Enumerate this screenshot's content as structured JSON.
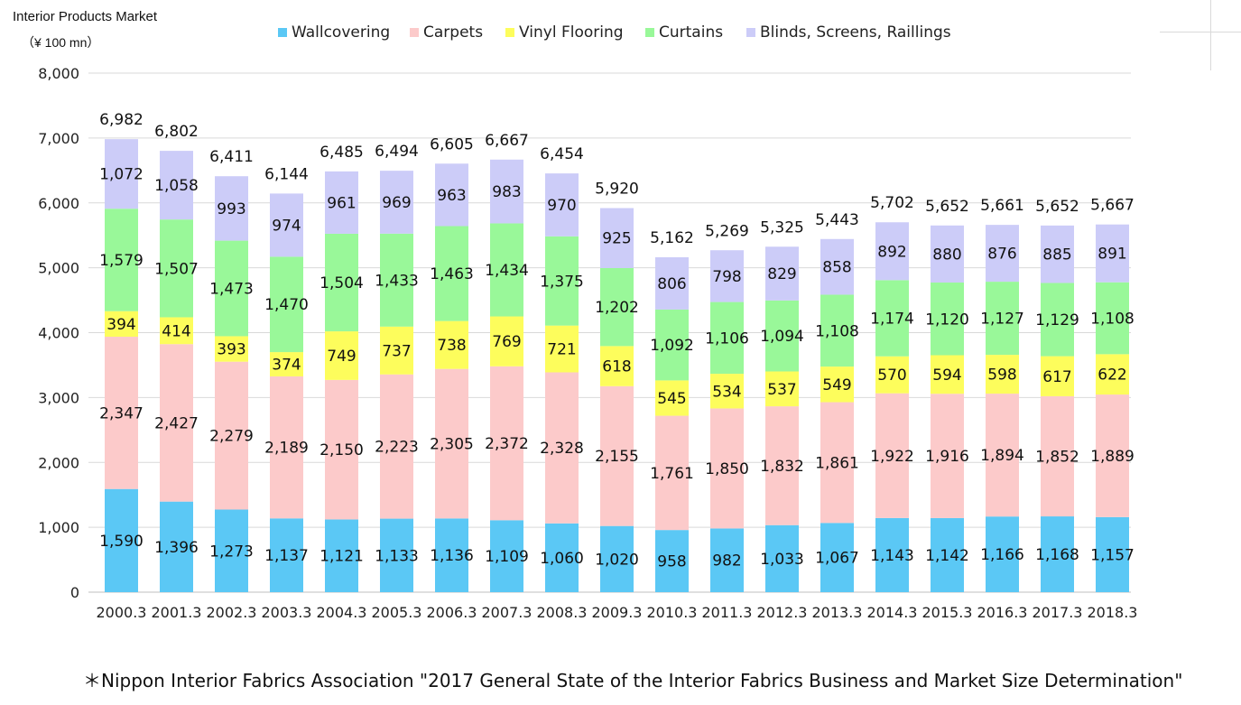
{
  "title": "Interior Products Market",
  "unit": "（¥ 100 mn）",
  "footnote": "＊Nippon Interior Fabrics Association \"2017 General State of the Interior Fabrics Business and Market Size Determination\"",
  "chart_data": {
    "type": "bar",
    "stacked": true,
    "ylim": [
      0,
      8000
    ],
    "yticks": [
      "0",
      "1,000",
      "2,000",
      "3,000",
      "4,000",
      "5,000",
      "6,000",
      "7,000",
      "8,000"
    ],
    "grid": true,
    "legend_position": "top",
    "categories": [
      "2000.3",
      "2001.3",
      "2002.3",
      "2003.3",
      "2004.3",
      "2005.3",
      "2006.3",
      "2007.3",
      "2008.3",
      "2009.3",
      "2010.3",
      "2011.3",
      "2012.3",
      "2013.3",
      "2014.3",
      "2015.3",
      "2016.3",
      "2017.3",
      "2018.3"
    ],
    "series": [
      {
        "name": "Wallcovering",
        "color": "#5bc8f5",
        "values": [
          1590,
          1396,
          1273,
          1137,
          1121,
          1133,
          1136,
          1109,
          1060,
          1020,
          958,
          982,
          1033,
          1067,
          1143,
          1142,
          1166,
          1168,
          1157
        ]
      },
      {
        "name": "Carpets",
        "color": "#fccaca",
        "values": [
          2347,
          2427,
          2279,
          2189,
          2150,
          2223,
          2305,
          2372,
          2328,
          2155,
          1761,
          1850,
          1832,
          1861,
          1922,
          1916,
          1894,
          1852,
          1889
        ]
      },
      {
        "name": "Vinyl Flooring",
        "color": "#fdfd5c",
        "values": [
          394,
          414,
          393,
          374,
          749,
          737,
          738,
          769,
          721,
          618,
          545,
          534,
          537,
          549,
          570,
          594,
          598,
          617,
          622
        ]
      },
      {
        "name": "Curtains",
        "color": "#99f899",
        "values": [
          1579,
          1507,
          1473,
          1470,
          1504,
          1433,
          1463,
          1434,
          1375,
          1202,
          1092,
          1106,
          1094,
          1108,
          1174,
          1120,
          1127,
          1129,
          1108
        ]
      },
      {
        "name": "Blinds, Screens, Raillings",
        "color": "#ccccf8",
        "values": [
          1072,
          1058,
          993,
          974,
          961,
          969,
          963,
          983,
          970,
          925,
          806,
          798,
          829,
          858,
          892,
          880,
          876,
          885,
          891
        ]
      }
    ],
    "totals": [
      6982,
      6802,
      6411,
      6144,
      6485,
      6494,
      6605,
      6667,
      6454,
      5920,
      5162,
      5269,
      5325,
      5443,
      5702,
      5652,
      5661,
      5652,
      5667
    ]
  }
}
